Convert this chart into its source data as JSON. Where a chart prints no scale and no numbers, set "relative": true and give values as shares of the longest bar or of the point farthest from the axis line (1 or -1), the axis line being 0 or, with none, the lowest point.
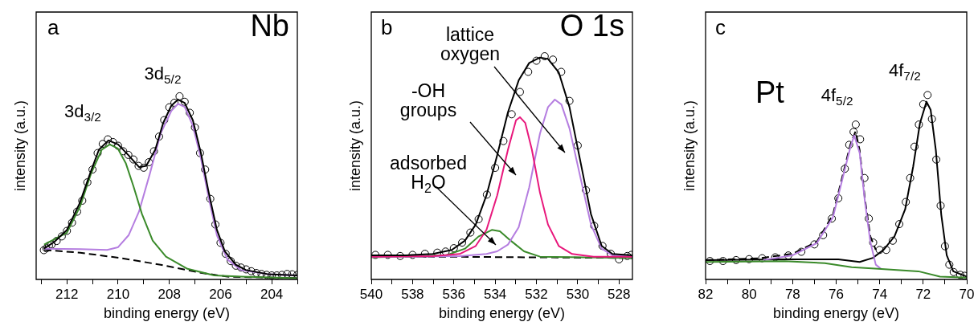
{
  "chart_data": [
    {
      "type": "line",
      "title": "Nb",
      "xlabel": "binding energy (eV)",
      "ylabel": "intensity (a.u.)",
      "relative": true,
      "xlim": [
        213.2,
        203
      ],
      "xticks": [
        212,
        210,
        208,
        206,
        204,
        {
          "value": 213,
          "label": null
        },
        {
          "value": 211,
          "label": null
        },
        {
          "value": 209,
          "label": null
        },
        {
          "value": 207,
          "label": null
        },
        {
          "value": 205,
          "label": null
        },
        {
          "value": 203,
          "label": null
        }
      ],
      "annotations": [
        "a",
        {
          "text": "3d$_{3/2}$",
          "x": 210.38,
          "y": 0.759
        },
        {
          "text": "3d$_{5/2}$",
          "x": 207.66,
          "y": 0.982
        }
      ],
      "series": [
        {
          "type": "scatter",
          "marker": "circle",
          "color": "#000000",
          "x": [
            212.9,
            212.8,
            212.7,
            212.6,
            212.4,
            212.2,
            212.0,
            211.8,
            211.6,
            211.4,
            211.2,
            211.0,
            210.8,
            210.6,
            210.4,
            210.2,
            210.0,
            209.8,
            209.6,
            209.4,
            209.2,
            209.0,
            208.8,
            208.6,
            208.4,
            208.2,
            208.0,
            207.8,
            207.6,
            207.4,
            207.2,
            207.0,
            206.8,
            206.6,
            206.4,
            206.2,
            206.0,
            205.8,
            205.6,
            205.4,
            205.2,
            205.0,
            204.8,
            204.6,
            204.4,
            204.2,
            204.0,
            203.8,
            203.6,
            203.4,
            203.2,
            203.0
          ],
          "values": [
            0.16,
            0.17,
            0.185,
            0.19,
            0.21,
            0.235,
            0.265,
            0.31,
            0.37,
            0.43,
            0.53,
            0.6,
            0.69,
            0.74,
            0.765,
            0.75,
            0.73,
            0.7,
            0.68,
            0.655,
            0.62,
            0.61,
            0.64,
            0.7,
            0.78,
            0.87,
            0.94,
            0.965,
            1.0,
            0.97,
            0.91,
            0.83,
            0.69,
            0.6,
            0.44,
            0.3,
            0.2,
            0.14,
            0.1,
            0.075,
            0.065,
            0.055,
            0.045,
            0.035,
            0.03,
            0.025,
            0.022,
            0.022,
            0.025,
            0.03,
            0.028,
            0.025
          ]
        },
        {
          "type": "line",
          "color": "#000000",
          "x": [
            212.9,
            212.5,
            212,
            211.5,
            211.06,
            210.75,
            210.38,
            210,
            209.6,
            209.18,
            208.9,
            208.55,
            208.24,
            207.92,
            207.66,
            207.4,
            207.08,
            206.77,
            206.46,
            206.14,
            205.83,
            205.4,
            205.0,
            204.16,
            203.0
          ],
          "values": [
            0.168,
            0.204,
            0.27,
            0.416,
            0.591,
            0.708,
            0.759,
            0.737,
            0.679,
            0.613,
            0.62,
            0.708,
            0.854,
            0.949,
            0.982,
            0.964,
            0.869,
            0.693,
            0.474,
            0.27,
            0.153,
            0.08,
            0.051,
            0.029,
            0.022
          ]
        },
        {
          "type": "line",
          "color": "#3a8a2a",
          "x": [
            212.89,
            212,
            211.48,
            211.06,
            210.64,
            210.33,
            210.01,
            209.7,
            209.39,
            209.07,
            208.65,
            208.13,
            207.29,
            206.25,
            205.2,
            203
          ],
          "values": [
            0.19,
            0.255,
            0.4,
            0.577,
            0.708,
            0.737,
            0.715,
            0.635,
            0.504,
            0.358,
            0.212,
            0.124,
            0.058,
            0.022,
            0.015,
            0.007
          ]
        },
        {
          "type": "line",
          "color": "#b57ee0",
          "x": [
            212.89,
            211.48,
            210.43,
            210.01,
            209.59,
            209.18,
            208.76,
            208.34,
            207.92,
            207.66,
            207.4,
            207.08,
            206.77,
            206.46,
            206.14,
            205.73,
            205.2,
            204.16,
            203
          ],
          "values": [
            0.168,
            0.165,
            0.161,
            0.175,
            0.241,
            0.372,
            0.577,
            0.796,
            0.92,
            0.959,
            0.942,
            0.839,
            0.664,
            0.445,
            0.241,
            0.109,
            0.051,
            0.029,
            0.022
          ]
        },
        {
          "type": "line",
          "line_style": "dashed",
          "color": "#000000",
          "x": [
            212.89,
            211.48,
            209.91,
            208.34,
            206.77,
            205.73,
            203
          ],
          "values": [
            0.161,
            0.146,
            0.117,
            0.08,
            0.036,
            0.015,
            0.007
          ]
        }
      ]
    },
    {
      "type": "line",
      "title": "O 1s",
      "xlabel": "binding energy (eV)",
      "ylabel": "intensity (a.u.)",
      "relative": true,
      "xlim": [
        540,
        527.35
      ],
      "xticks": [
        540,
        538,
        536,
        534,
        532,
        530,
        528,
        {
          "value": 539,
          "label": null
        },
        {
          "value": 537,
          "label": null
        },
        {
          "value": 535,
          "label": null
        },
        {
          "value": 533,
          "label": null
        },
        {
          "value": 531,
          "label": null
        },
        {
          "value": 529,
          "label": null
        }
      ],
      "annotations": [
        "b",
        "lattice\noxygen",
        "-OH\ngroups",
        "adsorbed\nH$_{2}$O"
      ],
      "series": [
        {
          "type": "scatter",
          "marker": "circle",
          "color": "#000000",
          "x": [
            539.8,
            539.2,
            538.6,
            538.0,
            537.4,
            536.8,
            536.4,
            536.0,
            535.6,
            535.2,
            534.8,
            534.4,
            534.0,
            533.6,
            533.2,
            532.8,
            532.4,
            532.0,
            531.6,
            531.2,
            530.8,
            530.4,
            530.0,
            529.6,
            529.2,
            528.8,
            528.4,
            528.0,
            527.6,
            527.4
          ],
          "values": [
            0.11,
            0.11,
            0.105,
            0.11,
            0.115,
            0.12,
            0.125,
            0.14,
            0.165,
            0.21,
            0.27,
            0.38,
            0.5,
            0.62,
            0.74,
            0.84,
            0.93,
            0.98,
            1.0,
            0.985,
            0.93,
            0.8,
            0.6,
            0.4,
            0.24,
            0.15,
            0.115,
            0.09,
            0.105,
            0.11
          ]
        },
        {
          "type": "line",
          "color": "#000000",
          "x": [
            540,
            538.31,
            537.02,
            536.1,
            535.46,
            534.94,
            534.42,
            533.9,
            533.38,
            532.86,
            532.35,
            531.83,
            531.44,
            530.92,
            530.4,
            529.88,
            529.36,
            528.84,
            528.32,
            527.35
          ],
          "values": [
            0.108,
            0.108,
            0.114,
            0.132,
            0.174,
            0.246,
            0.377,
            0.557,
            0.749,
            0.892,
            0.97,
            0.994,
            0.988,
            0.928,
            0.772,
            0.533,
            0.293,
            0.15,
            0.114,
            0.108
          ]
        },
        {
          "type": "line",
          "color": "#e8187c",
          "x": [
            540,
            537.02,
            535.72,
            534.94,
            534.42,
            533.9,
            533.38,
            532.99,
            532.8,
            532.54,
            532.22,
            531.83,
            531.44,
            530.92,
            530.27,
            529.23,
            527.35
          ],
          "values": [
            0.102,
            0.104,
            0.114,
            0.15,
            0.222,
            0.377,
            0.581,
            0.713,
            0.727,
            0.701,
            0.581,
            0.389,
            0.246,
            0.15,
            0.114,
            0.102,
            0.102
          ]
        },
        {
          "type": "line",
          "color": "#b57ee0",
          "x": [
            540,
            535.72,
            534.42,
            533.9,
            533.38,
            532.86,
            532.35,
            531.83,
            531.44,
            531.11,
            530.79,
            530.4,
            529.88,
            529.36,
            528.84,
            528.32,
            527.35
          ],
          "values": [
            0.102,
            0.104,
            0.114,
            0.126,
            0.156,
            0.234,
            0.413,
            0.653,
            0.772,
            0.806,
            0.784,
            0.677,
            0.461,
            0.246,
            0.138,
            0.108,
            0.102
          ]
        },
        {
          "type": "line",
          "color": "#3a8a2a",
          "x": [
            540,
            536.37,
            535.46,
            534.81,
            534.16,
            533.77,
            533.25,
            532.6,
            531.83,
            527.35
          ],
          "values": [
            0.099,
            0.108,
            0.138,
            0.192,
            0.222,
            0.216,
            0.174,
            0.126,
            0.102,
            0.096
          ]
        },
        {
          "type": "line",
          "line_style": "dashed",
          "color": "#000000",
          "x": [
            540,
            527.35
          ],
          "values": [
            0.104,
            0.096
          ]
        }
      ]
    },
    {
      "type": "line",
      "title": "Pt",
      "xlabel": "binding energy (eV)",
      "ylabel": "intensity (a.u.)",
      "relative": true,
      "xlim": [
        82,
        70
      ],
      "xticks": [
        82,
        80,
        78,
        76,
        74,
        72,
        70,
        {
          "value": 81,
          "label": null
        },
        {
          "value": 79,
          "label": null
        },
        {
          "value": 77,
          "label": null
        },
        {
          "value": 75,
          "label": null
        },
        {
          "value": 73,
          "label": null
        },
        {
          "value": 71,
          "label": null
        }
      ],
      "annotations": [
        "c",
        {
          "text": "4f$_{5/2}$",
          "x": 75.11,
          "y": 0.84
        },
        {
          "text": "4f$_{7/2}$",
          "x": 71.85,
          "y": 1.0
        }
      ],
      "series": [
        {
          "type": "scatter",
          "marker": "circle",
          "color": "#000000",
          "x": [
            81.8,
            81.2,
            80.6,
            80.0,
            79.4,
            78.8,
            78.2,
            77.6,
            77.0,
            76.6,
            76.2,
            75.9,
            75.6,
            75.4,
            75.2,
            75.1,
            74.9,
            74.7,
            74.5,
            74.3,
            74.0,
            73.7,
            73.4,
            73.1,
            72.8,
            72.6,
            72.4,
            72.2,
            72.0,
            71.8,
            71.6,
            71.4,
            71.2,
            71.0,
            70.8,
            70.6,
            70.3,
            70.1
          ],
          "values": [
            0.1,
            0.1,
            0.105,
            0.11,
            0.115,
            0.12,
            0.13,
            0.15,
            0.19,
            0.24,
            0.33,
            0.44,
            0.6,
            0.73,
            0.8,
            0.84,
            0.76,
            0.55,
            0.33,
            0.2,
            0.16,
            0.16,
            0.21,
            0.3,
            0.42,
            0.55,
            0.72,
            0.84,
            0.95,
            1.0,
            0.87,
            0.65,
            0.4,
            0.18,
            0.08,
            0.04,
            0.025,
            0.02
          ]
        },
        {
          "type": "line",
          "color": "#3a8a2a",
          "x": [
            82,
            78.37,
            76.52,
            75.29,
            74.06,
            72.22,
            71.23,
            70
          ],
          "values": [
            0.095,
            0.099,
            0.088,
            0.066,
            0.058,
            0.044,
            0.015,
            0.01
          ]
        },
        {
          "type": "line",
          "color": "#b57ee0",
          "x": [
            79.35,
            78.0,
            76.89,
            76.15,
            75.66,
            75.35,
            75.17,
            74.92,
            74.68,
            74.43,
            74.18,
            73.94
          ],
          "values": [
            0.105,
            0.131,
            0.197,
            0.336,
            0.569,
            0.715,
            0.781,
            0.686,
            0.423,
            0.204,
            0.08,
            0.058
          ]
        },
        {
          "type": "line",
          "color": "#000000",
          "x": [
            82,
            78.37,
            75.9,
            74.92,
            74.31,
            73.82,
            73.32,
            72.83,
            72.46,
            72.15,
            71.85,
            71.66,
            71.42,
            71.17,
            70.92,
            70.62,
            70
          ],
          "values": [
            0.105,
            0.109,
            0.109,
            0.095,
            0.117,
            0.161,
            0.234,
            0.38,
            0.613,
            0.847,
            0.964,
            0.92,
            0.701,
            0.35,
            0.131,
            0.044,
            0.015
          ]
        },
        {
          "type": "line",
          "line_style": "dashed",
          "color": "#000000",
          "x": [
            82,
            79.6,
            78.0,
            76.89,
            76.15,
            75.66,
            75.35,
            75.11,
            74.92,
            74.68,
            74.43,
            74.18
          ],
          "values": [
            0.105,
            0.114,
            0.139,
            0.204,
            0.35,
            0.584,
            0.73,
            0.803,
            0.701,
            0.438,
            0.234,
            0.161
          ]
        }
      ]
    }
  ]
}
